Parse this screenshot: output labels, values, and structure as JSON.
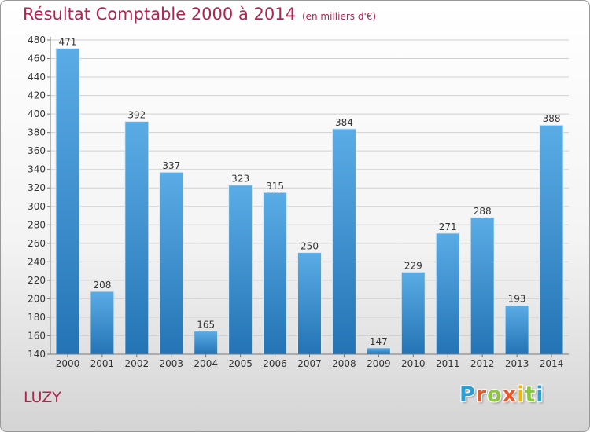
{
  "title": "Résultat Comptable 2000 à 2014",
  "subtitle": "(en milliers d'€)",
  "commune": "LUZY",
  "logo": {
    "letters": [
      "P",
      "r",
      "o",
      "x",
      "i",
      "t",
      "i"
    ],
    "colors": [
      "#2a9fd6",
      "#e8582a",
      "#8cc63f",
      "#e8582a",
      "#f4b400",
      "#8cc63f",
      "#2a9fd6"
    ]
  },
  "colors": {
    "bar_light": "#5aace6",
    "bar_dark": "#2474b5",
    "title": "#b0254f"
  },
  "chart_data": {
    "type": "bar",
    "categories": [
      "2000",
      "2001",
      "2002",
      "2003",
      "2004",
      "2005",
      "2006",
      "2007",
      "2008",
      "2009",
      "2010",
      "2011",
      "2012",
      "2013",
      "2014"
    ],
    "values": [
      471,
      208,
      392,
      337,
      165,
      323,
      315,
      250,
      384,
      147,
      229,
      271,
      288,
      193,
      388
    ],
    "ylim": [
      140,
      480
    ],
    "yticks": [
      140,
      160,
      180,
      200,
      220,
      240,
      260,
      280,
      300,
      320,
      340,
      360,
      380,
      400,
      420,
      440,
      460,
      480
    ],
    "grid": true
  }
}
